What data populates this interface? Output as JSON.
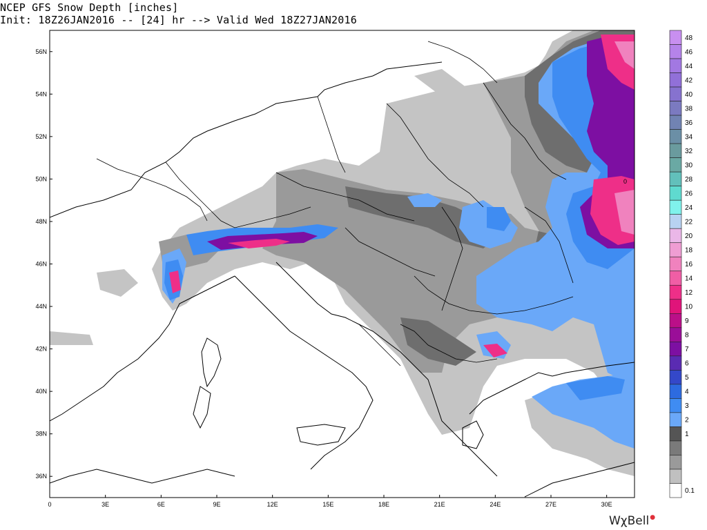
{
  "header": {
    "line1": "NCEP GFS Snow Depth [inches]",
    "line2": "Init: 18Z26JAN2016 -- [24] hr --> Valid Wed 18Z27JAN2016"
  },
  "map": {
    "lat_labels": [
      "56N",
      "54N",
      "52N",
      "50N",
      "48N",
      "46N",
      "44N",
      "42N",
      "40N",
      "38N",
      "36N"
    ],
    "lon_labels": [
      "0",
      "3E",
      "6E",
      "9E",
      "12E",
      "15E",
      "18E",
      "21E",
      "24E",
      "27E",
      "30E"
    ],
    "extent": {
      "lon": [
        0,
        31.5
      ],
      "lat": [
        35,
        57
      ]
    },
    "inline_label": "0"
  },
  "legend": {
    "items": [
      {
        "label": "48",
        "color": "#c88ff0"
      },
      {
        "label": "46",
        "color": "#b583ea"
      },
      {
        "label": "44",
        "color": "#a278e2"
      },
      {
        "label": "42",
        "color": "#9170d8"
      },
      {
        "label": "40",
        "color": "#8672cf"
      },
      {
        "label": "38",
        "color": "#7b7ac0"
      },
      {
        "label": "36",
        "color": "#7183b3"
      },
      {
        "label": "34",
        "color": "#6b8fa6"
      },
      {
        "label": "32",
        "color": "#6a9b9e"
      },
      {
        "label": "30",
        "color": "#6aa9a4"
      },
      {
        "label": "28",
        "color": "#62c0bb"
      },
      {
        "label": "26",
        "color": "#5fdacf"
      },
      {
        "label": "24",
        "color": "#80f2ec"
      },
      {
        "label": "22",
        "color": "#b8d2f2"
      },
      {
        "label": "20",
        "color": "#eab7e8"
      },
      {
        "label": "18",
        "color": "#ef9dd3"
      },
      {
        "label": "16",
        "color": "#f082be"
      },
      {
        "label": "14",
        "color": "#f05ea5"
      },
      {
        "label": "12",
        "color": "#ee2f88"
      },
      {
        "label": "10",
        "color": "#e0147a"
      },
      {
        "label": "9",
        "color": "#bb0f88"
      },
      {
        "label": "8",
        "color": "#9a0e98"
      },
      {
        "label": "7",
        "color": "#7d0fa2"
      },
      {
        "label": "6",
        "color": "#5a2bb2"
      },
      {
        "label": "5",
        "color": "#3448c9"
      },
      {
        "label": "4",
        "color": "#2d6be0"
      },
      {
        "label": "3",
        "color": "#3f8cf2"
      },
      {
        "label": "2",
        "color": "#6aa8f8"
      },
      {
        "label": "1",
        "color": "#555555"
      },
      {
        "label": "",
        "color": "#7a7a7a"
      },
      {
        "label": "",
        "color": "#9a9a9a"
      },
      {
        "label": "",
        "color": "#c0c0c0"
      },
      {
        "label": "0.1",
        "color": "#ffffff"
      }
    ]
  },
  "brand": {
    "text": "WχBell"
  }
}
